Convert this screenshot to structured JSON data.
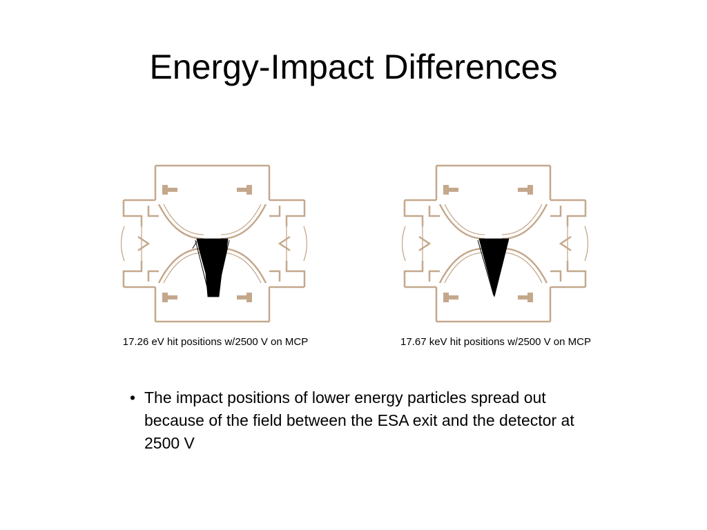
{
  "slide": {
    "title": "Energy-Impact Differences"
  },
  "figures": [
    {
      "caption": "17.26 eV hit positions w/2500 V on MCP"
    },
    {
      "caption": "17.67 keV hit positions w/2500 V on MCP"
    }
  ],
  "bullets": [
    {
      "marker": "•",
      "text": "The impact positions of lower energy particles spread out because of the field between the ESA exit and the detector at 2500 V"
    }
  ],
  "colors": {
    "instrument_outline": "#c4a88c",
    "hit_positions": "#000000",
    "background": "#ffffff"
  }
}
